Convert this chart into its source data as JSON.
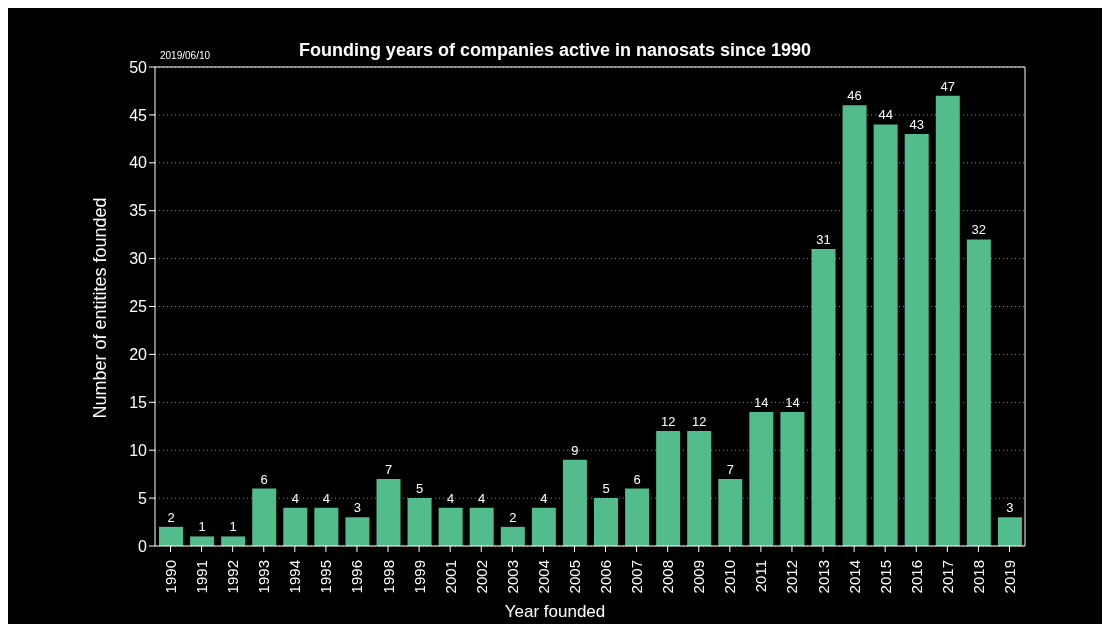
{
  "chart_data": {
    "type": "bar",
    "title": "Founding years of companies active in nanosats since 1990",
    "xlabel": "Year founded",
    "ylabel": "Number of entitites founded",
    "annotations": [
      "2019/06/10"
    ],
    "categories": [
      "1990",
      "1991",
      "1992",
      "1993",
      "1994",
      "1995",
      "1996",
      "1998",
      "1999",
      "2001",
      "2002",
      "2003",
      "2004",
      "2005",
      "2006",
      "2007",
      "2008",
      "2009",
      "2010",
      "2011",
      "2012",
      "2013",
      "2014",
      "2015",
      "2016",
      "2017",
      "2018",
      "2019"
    ],
    "values": [
      2,
      1,
      1,
      6,
      4,
      4,
      3,
      7,
      5,
      4,
      4,
      2,
      4,
      9,
      5,
      6,
      12,
      12,
      7,
      14,
      14,
      31,
      46,
      44,
      43,
      47,
      32,
      3
    ],
    "color": "#52bc8c",
    "ylim": [
      0,
      50
    ],
    "yticks": [
      0,
      5,
      10,
      15,
      20,
      25,
      30,
      35,
      40,
      45,
      50
    ],
    "grid": "y",
    "data_labels": true,
    "legend": false
  }
}
